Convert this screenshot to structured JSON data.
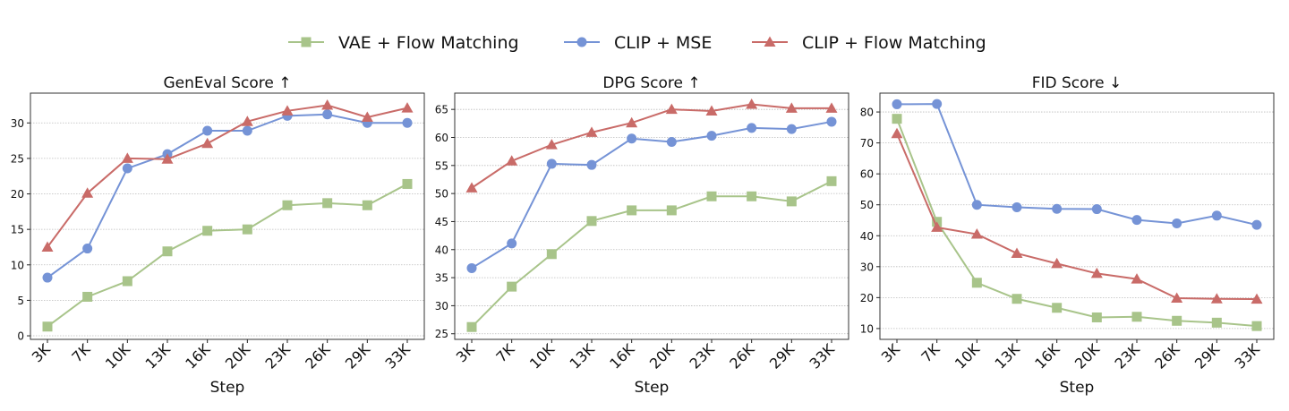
{
  "legend": {
    "placement": "top-center",
    "entries": [
      {
        "label": "VAE + Flow Matching",
        "color": "#a8c48a",
        "marker": "square"
      },
      {
        "label": "CLIP + MSE",
        "color": "#7593d6",
        "marker": "circle"
      },
      {
        "label": "CLIP + Flow Matching",
        "color": "#c96b68",
        "marker": "triangle"
      }
    ]
  },
  "chart_data": [
    {
      "type": "line",
      "title": "GenEval Score ↑",
      "xlabel": "Step",
      "ylabel": "",
      "categories": [
        "3K",
        "7K",
        "10K",
        "13K",
        "16K",
        "20K",
        "23K",
        "26K",
        "29K",
        "33K"
      ],
      "ylim": [
        -0.5,
        34.2
      ],
      "yticks": [
        0,
        5,
        10,
        15,
        20,
        25,
        30
      ],
      "grid": "horizontal dotted",
      "series": [
        {
          "name": "VAE + Flow Matching",
          "values": [
            1.3,
            5.5,
            7.7,
            11.9,
            14.8,
            15.0,
            18.4,
            18.7,
            18.4,
            21.4
          ]
        },
        {
          "name": "CLIP + MSE",
          "values": [
            8.2,
            12.3,
            23.6,
            25.6,
            28.9,
            28.9,
            31.0,
            31.2,
            30.0,
            30.0
          ]
        },
        {
          "name": "CLIP + Flow Matching",
          "values": [
            12.5,
            20.1,
            25.0,
            24.9,
            27.1,
            30.2,
            31.7,
            32.5,
            30.8,
            32.1
          ]
        }
      ]
    },
    {
      "type": "line",
      "title": "DPG Score ↑",
      "xlabel": "Step",
      "ylabel": "",
      "categories": [
        "3K",
        "7K",
        "10K",
        "13K",
        "16K",
        "20K",
        "23K",
        "26K",
        "29K",
        "33K"
      ],
      "ylim": [
        24.0,
        67.9
      ],
      "yticks": [
        25,
        30,
        35,
        40,
        45,
        50,
        55,
        60,
        65
      ],
      "grid": "horizontal dotted",
      "series": [
        {
          "name": "VAE + Flow Matching",
          "values": [
            26.2,
            33.4,
            39.2,
            45.1,
            47.0,
            47.0,
            49.5,
            49.5,
            48.6,
            52.2
          ]
        },
        {
          "name": "CLIP + MSE",
          "values": [
            36.7,
            41.1,
            55.3,
            55.1,
            59.8,
            59.2,
            60.3,
            61.7,
            61.5,
            62.8
          ]
        },
        {
          "name": "CLIP + Flow Matching",
          "values": [
            51.0,
            55.8,
            58.7,
            60.9,
            62.6,
            65.0,
            64.7,
            65.9,
            65.2,
            65.2
          ]
        }
      ]
    },
    {
      "type": "line",
      "title": "FID Score ↓",
      "xlabel": "Step",
      "ylabel": "",
      "categories": [
        "3K",
        "7K",
        "10K",
        "13K",
        "16K",
        "20K",
        "23K",
        "26K",
        "29K",
        "33K"
      ],
      "ylim": [
        6.5,
        86.1
      ],
      "yticks": [
        10,
        20,
        30,
        40,
        50,
        60,
        70,
        80
      ],
      "grid": "horizontal dotted",
      "series": [
        {
          "name": "VAE + Flow Matching",
          "values": [
            77.8,
            44.5,
            24.8,
            19.6,
            16.7,
            13.6,
            13.8,
            12.5,
            11.9,
            10.8
          ]
        },
        {
          "name": "CLIP + MSE",
          "values": [
            82.5,
            82.6,
            50.0,
            49.2,
            48.7,
            48.6,
            45.1,
            44.0,
            46.5,
            43.5
          ]
        },
        {
          "name": "CLIP + Flow Matching",
          "values": [
            73.0,
            42.7,
            40.5,
            34.3,
            31.0,
            27.8,
            26.0,
            19.8,
            19.6,
            19.5
          ]
        }
      ]
    }
  ]
}
